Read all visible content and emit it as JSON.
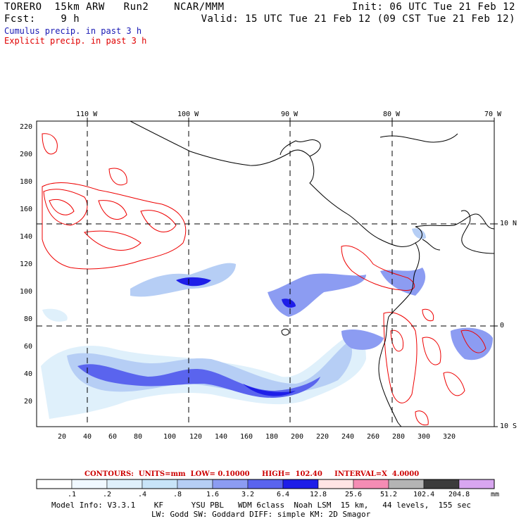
{
  "header": {
    "line1_left": "TORERO  15km ARW   Run2    NCAR/MMM",
    "line1_right": "Init: 06 UTC Tue 21 Feb 12",
    "line2_left": "Fcst:    9 h",
    "line2_right": "Valid: 15 UTC Tue 21 Feb 12 (09 CST Tue 21 Feb 12)"
  },
  "legend": {
    "cumulus": "Cumulus precip. in past 3 h",
    "explicit": "Explicit precip. in past 3 h"
  },
  "map": {
    "top_lon_labels": [
      "110 W",
      "100 W",
      "90 W",
      "80 W",
      "70 W"
    ],
    "right_lat_labels": [
      "10 N",
      "0",
      "10 S"
    ],
    "y_tick_labels": [
      "220",
      "200",
      "180",
      "160",
      "140",
      "120",
      "100",
      "80",
      "60",
      "40",
      "20"
    ],
    "x_tick_labels": [
      "20",
      "40",
      "60",
      "80",
      "100",
      "120",
      "140",
      "160",
      "180",
      "200",
      "220",
      "240",
      "260",
      "280",
      "300",
      "320"
    ],
    "colors": {
      "cumulus": "#3333ee",
      "explicit": "#ee0000",
      "coast": "#000000",
      "grid": "#000000"
    }
  },
  "contours_info": {
    "label": "CONTOURS:  UNITS=mm  LOW= 0.10000     HIGH=  102.40     INTERVAL=X  4.0000"
  },
  "colorbar": {
    "labels": [
      ".1",
      ".2",
      ".4",
      ".8",
      "1.6",
      "3.2",
      "6.4",
      "12.8",
      "25.6",
      "51.2",
      "102.4",
      "204.8"
    ],
    "units": "mm",
    "colors": [
      "#ffffff",
      "#f0f8ff",
      "#dff0fb",
      "#c8e4f8",
      "#b6cef5",
      "#8c9cf2",
      "#5a64ee",
      "#1e1ee8",
      "#ffe4e4",
      "#f58cb4",
      "#b4b4b4",
      "#3c3c3c",
      "#d8a6f0"
    ]
  },
  "footer": {
    "line1": "Model Info: V3.3.1    KF      YSU PBL   WDM 6class  Noah LSM  15 km,   44 levels,  155 sec",
    "line2": "LW: Godd SW: Goddard DIFF: simple KM: 2D Smagor"
  }
}
